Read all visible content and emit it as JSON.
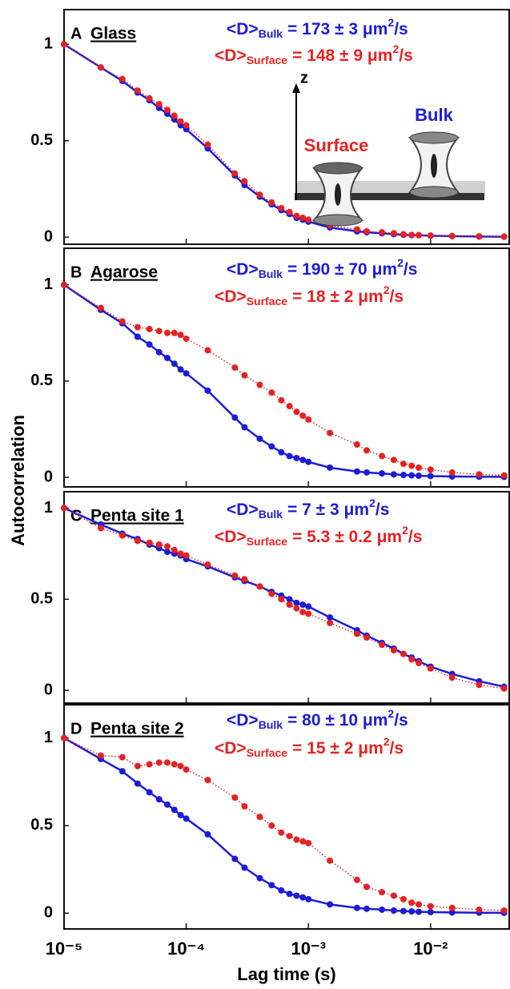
{
  "figure": {
    "xlabel": "Lag time (s)",
    "ylabel": "Autocorrelation"
  },
  "chart_data": [
    {
      "type": "line",
      "label": "A",
      "name": "Glass",
      "x": [
        1e-05,
        2e-05,
        3e-05,
        4e-05,
        5e-05,
        6e-05,
        7e-05,
        8e-05,
        9e-05,
        0.0001,
        0.00015,
        0.00025,
        0.0003,
        0.0004,
        0.0005,
        0.0006,
        0.0007,
        0.0008,
        0.0009,
        0.001,
        0.0015,
        0.0025,
        0.003,
        0.004,
        0.005,
        0.006,
        0.007,
        0.008,
        0.01,
        0.015,
        0.025,
        0.04
      ],
      "xlim": [
        1e-05,
        0.044
      ],
      "xticks": [
        1e-05,
        0.0001,
        0.001,
        0.01
      ],
      "log_x": true,
      "ylim": [
        -0.037,
        1.18
      ],
      "yticks": [
        0,
        0.5,
        1
      ],
      "series": [
        {
          "name": "Bulk",
          "color": "#1c1cd6",
          "stat_prefix": "<D>",
          "stat": "= 173 ± 3 μm",
          "stat_sup": "2",
          "stat_unit": "/s",
          "values": [
            1,
            0.88,
            0.81,
            0.75,
            0.71,
            0.67,
            0.64,
            0.61,
            0.58,
            0.56,
            0.46,
            0.32,
            0.27,
            0.21,
            0.17,
            0.14,
            0.12,
            0.1,
            0.09,
            0.08,
            0.05,
            0.03,
            0.025,
            0.02,
            0.015,
            0.012,
            0.01,
            0.01,
            0.007,
            0.005,
            0.003,
            0.002
          ]
        },
        {
          "name": "Surface",
          "color": "#e52222",
          "stat_prefix": "<D>",
          "stat": "= 148 ± 9 μm",
          "stat_sup": "2",
          "stat_unit": "/s",
          "values": [
            1,
            0.88,
            0.82,
            0.76,
            0.72,
            0.69,
            0.66,
            0.63,
            0.6,
            0.58,
            0.48,
            0.33,
            0.29,
            0.22,
            0.18,
            0.15,
            0.13,
            0.11,
            0.1,
            0.09,
            0.06,
            0.04,
            0.03,
            0.025,
            0.02,
            0.015,
            0.012,
            0.01,
            0.008,
            0.006,
            0.004,
            0.003
          ]
        }
      ],
      "inset_labels": {
        "axis": "z",
        "surface": "Surface",
        "bulk": "Bulk"
      }
    },
    {
      "type": "line",
      "label": "B",
      "name": "Agarose",
      "x": [
        1e-05,
        2e-05,
        3e-05,
        4e-05,
        5e-05,
        6e-05,
        7e-05,
        8e-05,
        9e-05,
        0.0001,
        0.00015,
        0.00025,
        0.0003,
        0.0004,
        0.0005,
        0.0006,
        0.0007,
        0.0008,
        0.0009,
        0.001,
        0.0015,
        0.0025,
        0.003,
        0.004,
        0.005,
        0.006,
        0.007,
        0.008,
        0.01,
        0.015,
        0.025,
        0.04
      ],
      "xlim": [
        1e-05,
        0.044
      ],
      "xticks": [
        1e-05,
        0.0001,
        0.001,
        0.01
      ],
      "log_x": true,
      "ylim": [
        -0.05,
        1.19
      ],
      "yticks": [
        0,
        0.5,
        1
      ],
      "series": [
        {
          "name": "Bulk",
          "color": "#1c1cd6",
          "stat_prefix": "<D>",
          "stat": "= 190 ± 70 μm",
          "stat_sup": "2",
          "stat_unit": "/s",
          "values": [
            1,
            0.87,
            0.8,
            0.73,
            0.69,
            0.65,
            0.62,
            0.59,
            0.56,
            0.54,
            0.45,
            0.31,
            0.26,
            0.2,
            0.16,
            0.13,
            0.11,
            0.1,
            0.09,
            0.08,
            0.05,
            0.03,
            0.025,
            0.02,
            0.015,
            0.012,
            0.01,
            0.008,
            0.006,
            0.004,
            0.003,
            0.002
          ]
        },
        {
          "name": "Surface",
          "color": "#e52222",
          "stat_prefix": "<D>",
          "stat": "= 18 ± 2 μm",
          "stat_sup": "2",
          "stat_unit": "/s",
          "values": [
            1,
            0.88,
            0.81,
            0.78,
            0.77,
            0.76,
            0.75,
            0.75,
            0.74,
            0.72,
            0.66,
            0.57,
            0.53,
            0.48,
            0.44,
            0.4,
            0.37,
            0.34,
            0.32,
            0.3,
            0.23,
            0.17,
            0.14,
            0.11,
            0.09,
            0.07,
            0.06,
            0.05,
            0.04,
            0.025,
            0.015,
            0.01
          ]
        }
      ]
    },
    {
      "type": "line",
      "label": "C",
      "name": "Penta site 1",
      "x": [
        1e-05,
        2e-05,
        3e-05,
        4e-05,
        5e-05,
        6e-05,
        7e-05,
        8e-05,
        9e-05,
        0.0001,
        0.00015,
        0.00025,
        0.0003,
        0.0004,
        0.0005,
        0.0006,
        0.0007,
        0.0008,
        0.0009,
        0.001,
        0.0015,
        0.0025,
        0.003,
        0.004,
        0.005,
        0.006,
        0.007,
        0.008,
        0.01,
        0.015,
        0.025,
        0.04
      ],
      "xlim": [
        1e-05,
        0.044
      ],
      "xticks": [
        1e-05,
        0.0001,
        0.001,
        0.01
      ],
      "log_x": true,
      "ylim": [
        -0.07,
        1.09
      ],
      "yticks": [
        0,
        0.5,
        1
      ],
      "series": [
        {
          "name": "Bulk",
          "color": "#1c1cd6",
          "stat_prefix": "<D>",
          "stat": "= 7 ± 3 μm",
          "stat_sup": "2",
          "stat_unit": "/s",
          "values": [
            1,
            0.91,
            0.86,
            0.83,
            0.8,
            0.78,
            0.76,
            0.75,
            0.74,
            0.72,
            0.68,
            0.62,
            0.6,
            0.57,
            0.54,
            0.52,
            0.5,
            0.48,
            0.47,
            0.46,
            0.4,
            0.33,
            0.3,
            0.26,
            0.23,
            0.2,
            0.18,
            0.16,
            0.13,
            0.09,
            0.05,
            0.02
          ]
        },
        {
          "name": "Surface",
          "color": "#e52222",
          "stat_prefix": "<D>",
          "stat": "= 5.3 ± 0.2 μm",
          "stat_sup": "2",
          "stat_unit": "/s",
          "values": [
            1,
            0.89,
            0.85,
            0.82,
            0.81,
            0.8,
            0.79,
            0.77,
            0.75,
            0.74,
            0.69,
            0.63,
            0.61,
            0.57,
            0.53,
            0.5,
            0.47,
            0.45,
            0.43,
            0.42,
            0.37,
            0.31,
            0.29,
            0.25,
            0.22,
            0.2,
            0.17,
            0.15,
            0.12,
            0.07,
            0.03,
            0.01
          ]
        }
      ]
    },
    {
      "type": "line",
      "label": "D",
      "name": "Penta site 2",
      "x": [
        1e-05,
        2e-05,
        3e-05,
        4e-05,
        5e-05,
        6e-05,
        7e-05,
        8e-05,
        9e-05,
        0.0001,
        0.00015,
        0.00025,
        0.0003,
        0.0004,
        0.0005,
        0.0006,
        0.0007,
        0.0008,
        0.0009,
        0.001,
        0.0015,
        0.0025,
        0.003,
        0.004,
        0.005,
        0.006,
        0.007,
        0.008,
        0.01,
        0.015,
        0.025,
        0.04
      ],
      "xlim": [
        1e-05,
        0.044
      ],
      "xticks": [
        {
          "value": 1e-05,
          "label": "10⁻⁵"
        },
        {
          "value": 0.0001,
          "label": "10⁻⁴"
        },
        {
          "value": 0.001,
          "label": "10⁻³"
        },
        {
          "value": 0.01,
          "label": "10⁻²"
        }
      ],
      "log_x": true,
      "ylim": [
        -0.09,
        1.19
      ],
      "yticks": [
        0,
        0.5,
        1
      ],
      "series": [
        {
          "name": "Bulk",
          "color": "#1c1cd6",
          "stat_prefix": "<D>",
          "stat": "= 80 ± 10 μm",
          "stat_sup": "2",
          "stat_unit": "/s",
          "values": [
            1,
            0.88,
            0.81,
            0.74,
            0.69,
            0.65,
            0.62,
            0.59,
            0.56,
            0.54,
            0.45,
            0.31,
            0.26,
            0.2,
            0.16,
            0.13,
            0.11,
            0.1,
            0.09,
            0.08,
            0.05,
            0.03,
            0.025,
            0.02,
            0.015,
            0.012,
            0.01,
            0.008,
            0.006,
            0.004,
            0.003,
            0.002
          ]
        },
        {
          "name": "Surface",
          "color": "#e52222",
          "stat_prefix": "<D>",
          "stat": "= 15 ± 2 μm",
          "stat_sup": "2",
          "stat_unit": "/s",
          "values": [
            1,
            0.9,
            0.89,
            0.84,
            0.85,
            0.86,
            0.86,
            0.85,
            0.84,
            0.82,
            0.76,
            0.66,
            0.61,
            0.55,
            0.5,
            0.46,
            0.44,
            0.42,
            0.41,
            0.4,
            0.3,
            0.19,
            0.15,
            0.12,
            0.1,
            0.08,
            0.06,
            0.05,
            0.04,
            0.03,
            0.02,
            0.015
          ]
        }
      ]
    }
  ]
}
